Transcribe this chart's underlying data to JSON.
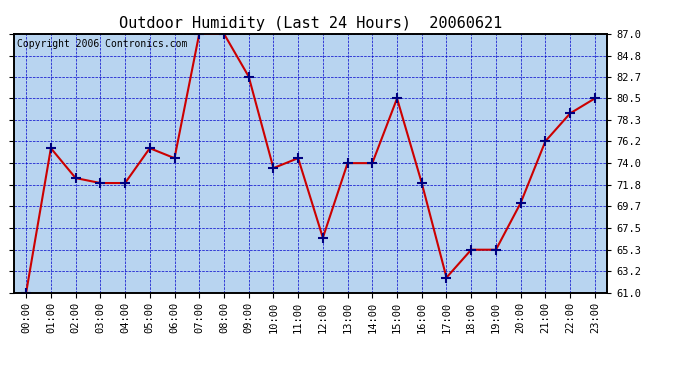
{
  "title": "Outdoor Humidity (Last 24 Hours)  20060621",
  "copyright": "Copyright 2006 Contronics.com",
  "x_labels": [
    "00:00",
    "01:00",
    "02:00",
    "03:00",
    "04:00",
    "05:00",
    "06:00",
    "07:00",
    "08:00",
    "09:00",
    "10:00",
    "11:00",
    "12:00",
    "13:00",
    "14:00",
    "15:00",
    "16:00",
    "17:00",
    "18:00",
    "19:00",
    "20:00",
    "21:00",
    "22:00",
    "23:00"
  ],
  "y_values": [
    61.0,
    75.5,
    72.5,
    72.0,
    72.0,
    75.5,
    74.5,
    87.0,
    87.0,
    82.7,
    73.5,
    74.5,
    66.5,
    74.0,
    74.0,
    80.5,
    72.0,
    62.5,
    65.3,
    65.3,
    70.0,
    76.2,
    79.0,
    80.5
  ],
  "y_min": 61.0,
  "y_max": 87.0,
  "y_ticks": [
    61.0,
    63.2,
    65.3,
    67.5,
    69.7,
    71.8,
    74.0,
    76.2,
    78.3,
    80.5,
    82.7,
    84.8,
    87.0
  ],
  "line_color": "#cc0000",
  "marker_color": "#000080",
  "bg_color": "#b8d4f0",
  "grid_color": "#0000cc",
  "border_color": "#000000",
  "title_color": "#000000",
  "copyright_color": "#000000",
  "title_fontsize": 11,
  "copyright_fontsize": 7,
  "tick_fontsize": 7.5
}
